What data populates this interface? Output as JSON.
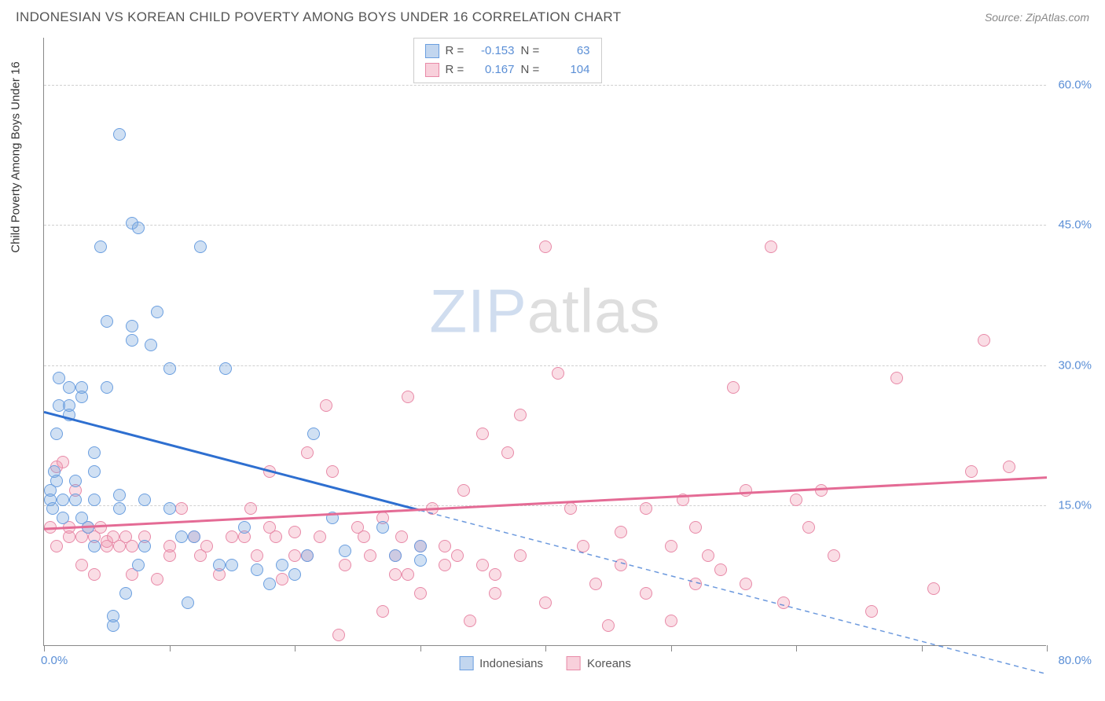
{
  "header": {
    "title": "INDONESIAN VS KOREAN CHILD POVERTY AMONG BOYS UNDER 16 CORRELATION CHART",
    "source": "Source: ZipAtlas.com"
  },
  "chart": {
    "type": "scatter",
    "ylabel": "Child Poverty Among Boys Under 16",
    "label_fontsize": 15,
    "xlim": [
      0,
      80
    ],
    "ylim": [
      0,
      65
    ],
    "x_label_min": "0.0%",
    "x_label_max": "80.0%",
    "x_ticks": [
      0,
      10,
      20,
      30,
      40,
      50,
      60,
      70,
      80
    ],
    "y_gridlines": [
      {
        "v": 15,
        "label": "15.0%"
      },
      {
        "v": 30,
        "label": "30.0%"
      },
      {
        "v": 45,
        "label": "45.0%"
      },
      {
        "v": 60,
        "label": "60.0%"
      }
    ],
    "background_color": "#ffffff",
    "grid_color": "#d0d0d0",
    "axis_color": "#888888",
    "tick_label_color": "#5b8fd6",
    "point_radius": 8,
    "series": [
      {
        "name": "Indonesians",
        "fill": "rgba(120,165,220,0.35)",
        "stroke": "#6b9fe0",
        "trend_color": "#2e6fd0",
        "R": "-0.153",
        "N": "63",
        "trend": {
          "x1": 0,
          "y1": 25,
          "x2_solid": 30,
          "y2_solid": 14.5,
          "x2": 80,
          "y2": -3
        },
        "points": [
          [
            0.5,
            17
          ],
          [
            0.5,
            18
          ],
          [
            0.7,
            16
          ],
          [
            0.8,
            20
          ],
          [
            1,
            19
          ],
          [
            1,
            24
          ],
          [
            1.2,
            27
          ],
          [
            1.2,
            30
          ],
          [
            1.5,
            15
          ],
          [
            1.5,
            17
          ],
          [
            2,
            26
          ],
          [
            2,
            27
          ],
          [
            2,
            29
          ],
          [
            2.5,
            17
          ],
          [
            2.5,
            19
          ],
          [
            3,
            15
          ],
          [
            3,
            28
          ],
          [
            3,
            29
          ],
          [
            3.5,
            14
          ],
          [
            4,
            12
          ],
          [
            4,
            17
          ],
          [
            4,
            20
          ],
          [
            4,
            22
          ],
          [
            4.5,
            44
          ],
          [
            5,
            29
          ],
          [
            5,
            36
          ],
          [
            5.5,
            3.5
          ],
          [
            5.5,
            4.5
          ],
          [
            6,
            56
          ],
          [
            6,
            16
          ],
          [
            6,
            17.5
          ],
          [
            6.5,
            7
          ],
          [
            7,
            34
          ],
          [
            7,
            35.5
          ],
          [
            7,
            46.5
          ],
          [
            7.5,
            10
          ],
          [
            7.5,
            46
          ],
          [
            8,
            12
          ],
          [
            8,
            17
          ],
          [
            8.5,
            33.5
          ],
          [
            9,
            37
          ],
          [
            10,
            31
          ],
          [
            10,
            16
          ],
          [
            11,
            13
          ],
          [
            11.5,
            6
          ],
          [
            12,
            13
          ],
          [
            12.5,
            44
          ],
          [
            14,
            10
          ],
          [
            14.5,
            31
          ],
          [
            15,
            10
          ],
          [
            16,
            14
          ],
          [
            17,
            9.5
          ],
          [
            18,
            8
          ],
          [
            19,
            10
          ],
          [
            20,
            9
          ],
          [
            21,
            11
          ],
          [
            21.5,
            24
          ],
          [
            23,
            15
          ],
          [
            24,
            11.5
          ],
          [
            27,
            14
          ],
          [
            28,
            11
          ],
          [
            30,
            10.5
          ],
          [
            30,
            12
          ]
        ]
      },
      {
        "name": "Koreans",
        "fill": "rgba(240,150,175,0.32)",
        "stroke": "#e88aa8",
        "trend_color": "#e46b95",
        "R": "0.167",
        "N": "104",
        "trend": {
          "x1": 0,
          "y1": 12.5,
          "x2_solid": 80,
          "y2_solid": 18,
          "x2": 80,
          "y2": 18
        },
        "points": [
          [
            0.5,
            14
          ],
          [
            1,
            12
          ],
          [
            1,
            20.5
          ],
          [
            1.5,
            21
          ],
          [
            2,
            13
          ],
          [
            2,
            14
          ],
          [
            2.5,
            18
          ],
          [
            3,
            10
          ],
          [
            3,
            13
          ],
          [
            3.5,
            14
          ],
          [
            4,
            9
          ],
          [
            4,
            13
          ],
          [
            4.5,
            14
          ],
          [
            5,
            12
          ],
          [
            5,
            12.5
          ],
          [
            5.5,
            13
          ],
          [
            6,
            12
          ],
          [
            6.5,
            13
          ],
          [
            7,
            9
          ],
          [
            7,
            12
          ],
          [
            8,
            13
          ],
          [
            9,
            8.5
          ],
          [
            10,
            11
          ],
          [
            10,
            12
          ],
          [
            11,
            16
          ],
          [
            12,
            13
          ],
          [
            12.5,
            11
          ],
          [
            13,
            12
          ],
          [
            14,
            9
          ],
          [
            15,
            13
          ],
          [
            16,
            13
          ],
          [
            16.5,
            16
          ],
          [
            17,
            11
          ],
          [
            18,
            14
          ],
          [
            18,
            20
          ],
          [
            18.5,
            13
          ],
          [
            19,
            8.5
          ],
          [
            20,
            11
          ],
          [
            20,
            13.5
          ],
          [
            21,
            11
          ],
          [
            21,
            22
          ],
          [
            22,
            13
          ],
          [
            22.5,
            27
          ],
          [
            23,
            20
          ],
          [
            23.5,
            2.5
          ],
          [
            24,
            10
          ],
          [
            25,
            14
          ],
          [
            25.5,
            13
          ],
          [
            26,
            11
          ],
          [
            27,
            5
          ],
          [
            27,
            15
          ],
          [
            28,
            9
          ],
          [
            28,
            11
          ],
          [
            28.5,
            13
          ],
          [
            29,
            9
          ],
          [
            29,
            28
          ],
          [
            30,
            7
          ],
          [
            30,
            12
          ],
          [
            31,
            16
          ],
          [
            32,
            10
          ],
          [
            32,
            12
          ],
          [
            33,
            11
          ],
          [
            33.5,
            18
          ],
          [
            34,
            4
          ],
          [
            35,
            10
          ],
          [
            35,
            24
          ],
          [
            36,
            7
          ],
          [
            36,
            9
          ],
          [
            37,
            22
          ],
          [
            38,
            11
          ],
          [
            38,
            26
          ],
          [
            40,
            6
          ],
          [
            40,
            44
          ],
          [
            41,
            30.5
          ],
          [
            42,
            16
          ],
          [
            43,
            12
          ],
          [
            44,
            8
          ],
          [
            45,
            3.5
          ],
          [
            46,
            10
          ],
          [
            46,
            13.5
          ],
          [
            48,
            7
          ],
          [
            48,
            16
          ],
          [
            50,
            4
          ],
          [
            50,
            12
          ],
          [
            51,
            17
          ],
          [
            52,
            8
          ],
          [
            52,
            14
          ],
          [
            53,
            11
          ],
          [
            54,
            9.5
          ],
          [
            55,
            29
          ],
          [
            56,
            8
          ],
          [
            56,
            18
          ],
          [
            58,
            44
          ],
          [
            59,
            6
          ],
          [
            60,
            17
          ],
          [
            61,
            14
          ],
          [
            62,
            18
          ],
          [
            63,
            11
          ],
          [
            66,
            5
          ],
          [
            68,
            30
          ],
          [
            71,
            7.5
          ],
          [
            74,
            20
          ],
          [
            75,
            34
          ],
          [
            77,
            20.5
          ]
        ]
      }
    ],
    "legend_swatch": {
      "blue_fill": "rgba(120,165,220,0.45)",
      "blue_stroke": "#6b9fe0",
      "pink_fill": "rgba(240,150,175,0.45)",
      "pink_stroke": "#e88aa8"
    }
  },
  "watermark": {
    "part1": "ZIP",
    "part2": "atlas"
  }
}
